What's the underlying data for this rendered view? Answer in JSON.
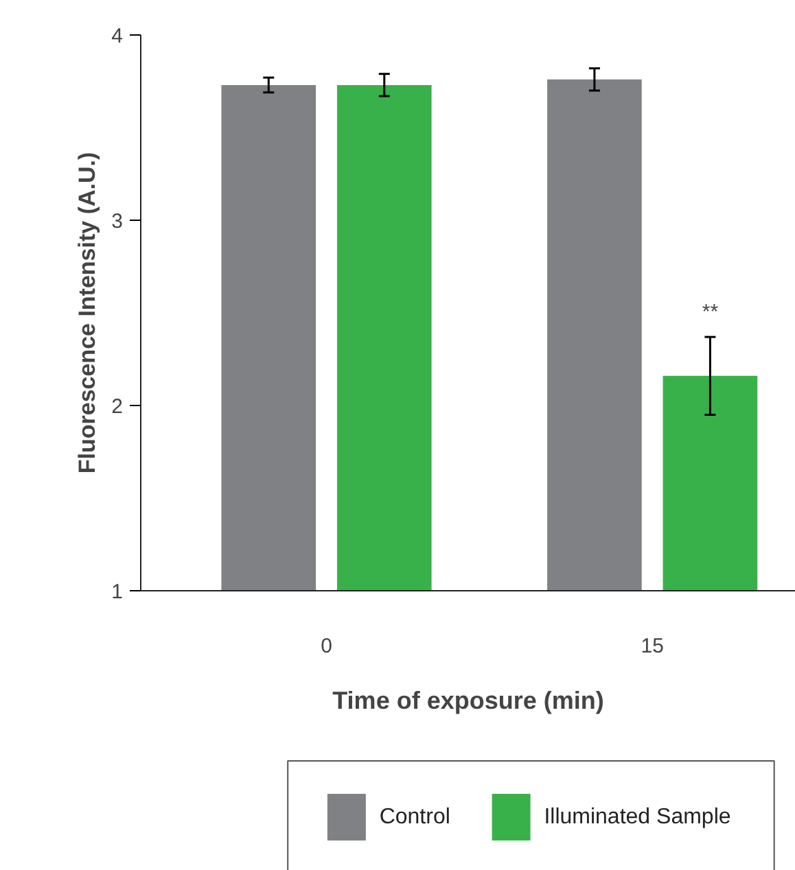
{
  "chart_data": {
    "type": "bar",
    "categories": [
      "0",
      "15"
    ],
    "xlabel": "Time of exposure (min)",
    "ylabel": "Fluorescence Intensity (A.U.)",
    "series": [
      {
        "name": "Control",
        "color": "#808184",
        "values": [
          3.73,
          3.76
        ],
        "errors": [
          0.04,
          0.06
        ]
      },
      {
        "name": "Illuminated Sample",
        "color": "#39b14a",
        "values": [
          3.73,
          2.16
        ],
        "errors": [
          0.06,
          0.21
        ]
      }
    ],
    "ylim": [
      1,
      4
    ],
    "yticks": [
      1,
      2,
      3,
      4
    ],
    "annotations": [
      "**"
    ],
    "grid": false,
    "legend": "bottom"
  }
}
